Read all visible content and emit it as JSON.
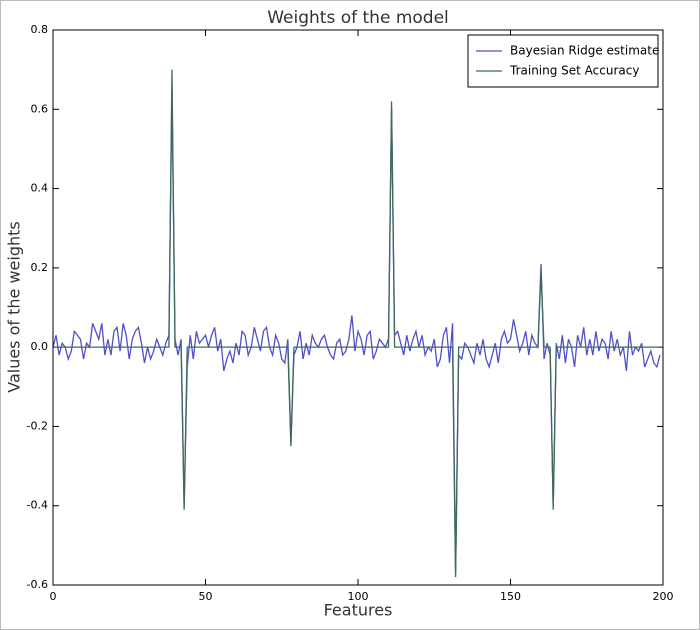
{
  "chart_data": {
    "type": "line",
    "title": "Weights of the model",
    "xlabel": "Features",
    "ylabel": "Values of the weights",
    "xlim": [
      0,
      200
    ],
    "xticks": [
      0,
      50,
      100,
      150,
      200
    ],
    "ylim": [
      -0.6,
      0.8
    ],
    "yticks": [
      -0.6,
      -0.4,
      -0.2,
      {
        "value": 0,
        "label": "0.0"
      },
      0.2,
      0.4,
      0.6,
      0.8
    ],
    "legend": "upper right",
    "series": [
      {
        "name": "Bayesian Ridge estimate",
        "color": "#5050c8",
        "x": [
          0,
          1,
          2,
          3,
          4,
          5,
          6,
          7,
          8,
          9,
          10,
          11,
          12,
          13,
          14,
          15,
          16,
          17,
          18,
          19,
          20,
          21,
          22,
          23,
          24,
          25,
          26,
          27,
          28,
          29,
          30,
          31,
          32,
          33,
          34,
          35,
          36,
          37,
          38,
          39,
          40,
          41,
          42,
          43,
          44,
          45,
          46,
          47,
          48,
          49,
          50,
          51,
          52,
          53,
          54,
          55,
          56,
          57,
          58,
          59,
          60,
          61,
          62,
          63,
          64,
          65,
          66,
          67,
          68,
          69,
          70,
          71,
          72,
          73,
          74,
          75,
          76,
          77,
          78,
          79,
          80,
          81,
          82,
          83,
          84,
          85,
          86,
          87,
          88,
          89,
          90,
          91,
          92,
          93,
          94,
          95,
          96,
          97,
          98,
          99,
          100,
          101,
          102,
          103,
          104,
          105,
          106,
          107,
          108,
          109,
          110,
          111,
          112,
          113,
          114,
          115,
          116,
          117,
          118,
          119,
          120,
          121,
          122,
          123,
          124,
          125,
          126,
          127,
          128,
          129,
          130,
          131,
          132,
          133,
          134,
          135,
          136,
          137,
          138,
          139,
          140,
          141,
          142,
          143,
          144,
          145,
          146,
          147,
          148,
          149,
          150,
          151,
          152,
          153,
          154,
          155,
          156,
          157,
          158,
          159,
          160,
          161,
          162,
          163,
          164,
          165,
          166,
          167,
          168,
          169,
          170,
          171,
          172,
          173,
          174,
          175,
          176,
          177,
          178,
          179,
          180,
          181,
          182,
          183,
          184,
          185,
          186,
          187,
          188,
          189,
          190,
          191,
          192,
          193,
          194,
          195,
          196,
          197,
          198,
          199
        ],
        "values": [
          0.0,
          0.03,
          -0.02,
          0.01,
          0.0,
          -0.03,
          -0.01,
          0.04,
          0.03,
          0.02,
          -0.03,
          0.01,
          0.0,
          0.06,
          0.04,
          0.02,
          0.06,
          -0.02,
          0.02,
          -0.02,
          0.04,
          0.05,
          -0.01,
          0.06,
          0.03,
          -0.03,
          0.02,
          0.04,
          0.05,
          0.01,
          -0.04,
          0.0,
          -0.03,
          -0.01,
          0.02,
          0.0,
          -0.02,
          0.01,
          0.03,
          0.65,
          0.02,
          -0.02,
          0.02,
          -0.4,
          -0.05,
          0.03,
          -0.03,
          0.04,
          0.01,
          0.02,
          0.03,
          0.0,
          0.03,
          0.05,
          -0.01,
          0.02,
          -0.06,
          -0.03,
          -0.01,
          -0.04,
          0.01,
          -0.02,
          0.04,
          0.03,
          -0.02,
          0.0,
          0.05,
          0.02,
          -0.01,
          0.04,
          0.05,
          0.0,
          -0.02,
          0.03,
          0.01,
          -0.03,
          -0.04,
          0.02,
          -0.24,
          -0.02,
          0.0,
          0.04,
          -0.03,
          0.01,
          -0.02,
          0.03,
          0.01,
          0.0,
          0.02,
          0.03,
          0.0,
          -0.02,
          -0.03,
          0.01,
          0.02,
          -0.02,
          -0.01,
          0.02,
          0.08,
          -0.01,
          0.04,
          0.02,
          -0.02,
          0.03,
          0.04,
          -0.03,
          -0.01,
          0.02,
          0.01,
          0.0,
          0.02,
          0.6,
          0.03,
          0.04,
          0.01,
          -0.02,
          0.03,
          -0.01,
          0.02,
          0.04,
          0.0,
          0.03,
          -0.02,
          0.0,
          -0.01,
          0.02,
          -0.05,
          -0.03,
          0.03,
          0.05,
          -0.04,
          0.06,
          -0.57,
          -0.02,
          -0.03,
          0.01,
          0.0,
          -0.02,
          -0.04,
          0.01,
          -0.02,
          0.02,
          -0.03,
          -0.05,
          -0.02,
          0.01,
          -0.04,
          0.02,
          0.04,
          0.01,
          0.02,
          0.07,
          0.03,
          -0.01,
          0.01,
          0.04,
          -0.02,
          0.03,
          0.01,
          0.0,
          0.21,
          -0.03,
          0.01,
          -0.02,
          -0.4,
          0.01,
          -0.03,
          0.03,
          -0.04,
          0.02,
          0.0,
          -0.05,
          0.03,
          0.0,
          0.05,
          -0.02,
          0.02,
          -0.02,
          0.04,
          -0.01,
          0.02,
          0.01,
          -0.03,
          0.04,
          -0.01,
          0.02,
          -0.02,
          0.0,
          -0.06,
          0.04,
          -0.02,
          0.0,
          -0.01,
          0.01,
          -0.05,
          -0.03,
          -0.01,
          -0.04,
          -0.05,
          -0.02
        ]
      },
      {
        "name": "Training Set Accuracy",
        "color": "#3f6a5a",
        "x": [
          0,
          38,
          39,
          40,
          42,
          43,
          44,
          77,
          78,
          79,
          110,
          111,
          112,
          131,
          132,
          133,
          159,
          160,
          161,
          163,
          164,
          165,
          199
        ],
        "values": [
          0,
          0,
          0.7,
          0,
          0,
          -0.41,
          0,
          0,
          -0.25,
          0,
          0,
          0.62,
          0,
          0,
          -0.58,
          0,
          0,
          0.19,
          0,
          0,
          -0.41,
          0,
          0
        ]
      }
    ]
  }
}
